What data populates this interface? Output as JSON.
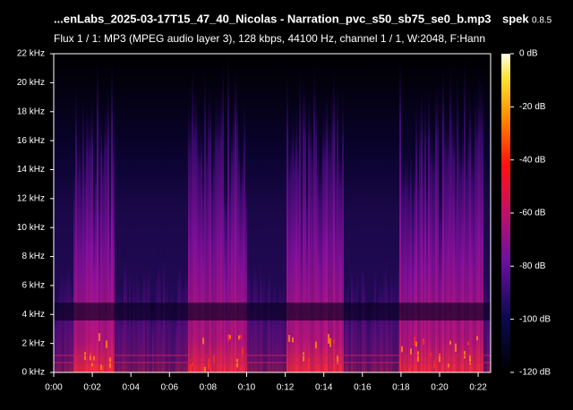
{
  "header": {
    "file": "...enLabs_2025-03-17T15_47_40_Nicolas - Narration_pvc_s50_sb75_se0_b.mp3",
    "app": "spek",
    "version": "0.8.5",
    "info": "Flux 1 / 1: MP3 (MPEG audio layer 3), 128 kbps, 44100 Hz, channel 1 / 1, W:2048, F:Hann"
  },
  "frequency_axis": {
    "ticks": [
      "0 kHz",
      "2 kHz",
      "4 kHz",
      "6 kHz",
      "8 kHz",
      "10 kHz",
      "12 kHz",
      "14 kHz",
      "16 kHz",
      "18 kHz",
      "20 kHz",
      "22 kHz"
    ]
  },
  "time_axis": {
    "ticks": [
      "0:00",
      "0:02",
      "0:04",
      "0:06",
      "0:08",
      "0:10",
      "0:12",
      "0:14",
      "0:16",
      "0:18",
      "0:20",
      "0:22"
    ]
  },
  "level_scale": {
    "ticks": [
      "0 dB",
      "-20 dB",
      "-40 dB",
      "-60 dB",
      "-80 dB",
      "-100 dB",
      "-120 dB"
    ]
  }
}
